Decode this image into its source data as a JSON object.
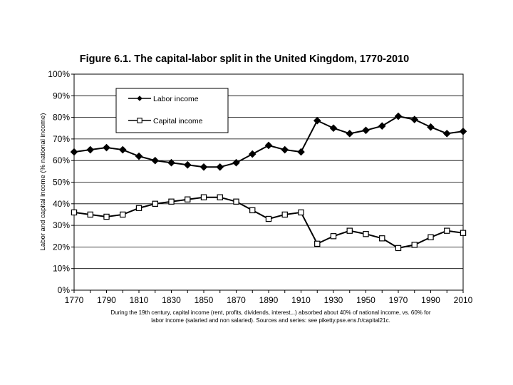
{
  "chart_data": {
    "type": "line",
    "title": "Figure 6.1. The capital-labor split in the United Kingdom, 1770-2010",
    "ylabel": "Labor and capital income (% national income)",
    "xlabel": "",
    "x": [
      1770,
      1780,
      1790,
      1800,
      1810,
      1820,
      1830,
      1840,
      1850,
      1860,
      1870,
      1880,
      1890,
      1900,
      1910,
      1920,
      1930,
      1940,
      1950,
      1960,
      1970,
      1980,
      1990,
      2000,
      2010
    ],
    "xticks": [
      "1770",
      "1790",
      "1810",
      "1830",
      "1850",
      "1870",
      "1890",
      "1910",
      "1930",
      "1950",
      "1970",
      "1990",
      "2010"
    ],
    "yticks": [
      "0%",
      "10%",
      "20%",
      "30%",
      "40%",
      "50%",
      "60%",
      "70%",
      "80%",
      "90%",
      "100%"
    ],
    "ylim": [
      0,
      100
    ],
    "xlim": [
      1770,
      2010
    ],
    "series": [
      {
        "name": "Labor income",
        "marker": "filled-diamond",
        "color": "#000000",
        "values": [
          64,
          65,
          66,
          65,
          62,
          60,
          59,
          58,
          57,
          57,
          59,
          63,
          67,
          65,
          64,
          78.5,
          75,
          72.5,
          74,
          76,
          80.5,
          79,
          75.5,
          72.5,
          73.5
        ]
      },
      {
        "name": "Capital income",
        "marker": "open-square",
        "color": "#000000",
        "values": [
          36,
          35,
          34,
          35,
          38,
          40,
          41,
          42,
          43,
          43,
          41,
          37,
          33,
          35,
          36,
          21.5,
          25,
          27.5,
          26,
          24,
          19.5,
          21,
          24.5,
          27.5,
          26.5
        ]
      }
    ],
    "grid": "horizontal",
    "legend_position": "top-left inside plot",
    "caption_lines": [
      "During the 19th century, capital income (rent, profits, dividends, interest,..) absorbed about 40% of national income, vs. 60% for",
      "labor income (salaried and non salaried). Sources and series: see piketty.pse.ens.fr/capital21c."
    ]
  }
}
